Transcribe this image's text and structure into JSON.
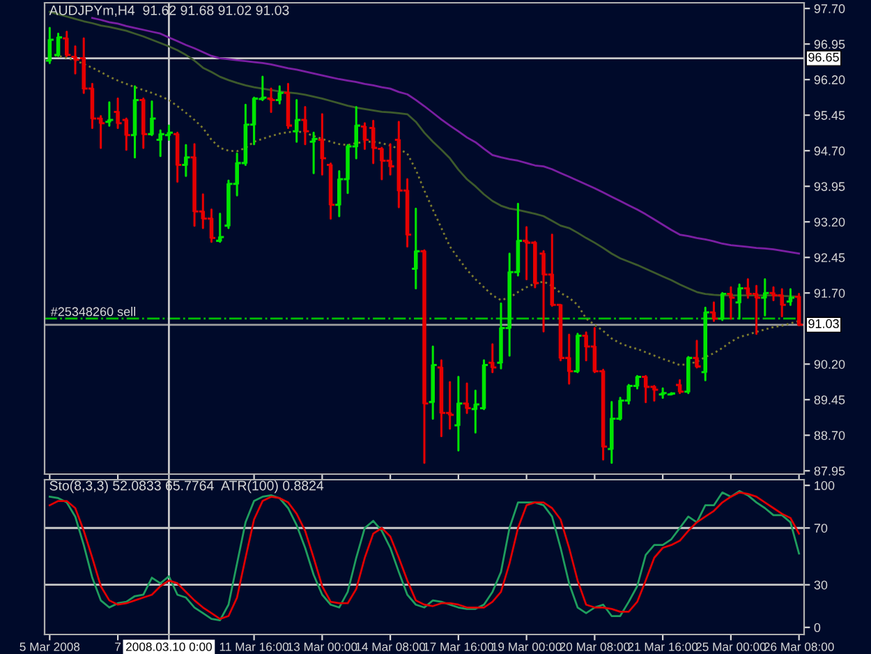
{
  "chart_data": [
    {
      "type": "candlestick",
      "title": "AUDJPYm,H4  91.62 91.68 91.02 91.03",
      "tick_labels": "y",
      "categories": [
        "5 Mar 2008",
        null,
        null,
        null,
        null,
        null,
        null,
        null,
        "7",
        null,
        null,
        null,
        null,
        null,
        "2008.03.10 0:00",
        null,
        null,
        null,
        null,
        null,
        null,
        null,
        null,
        null,
        "11 Mar 16:00",
        null,
        null,
        null,
        null,
        null,
        null,
        null,
        "13 Mar 00:00",
        null,
        null,
        null,
        null,
        null,
        null,
        null,
        "14 Mar 08:00",
        null,
        null,
        null,
        null,
        null,
        null,
        null,
        "17 Mar 16:00",
        null,
        null,
        null,
        null,
        null,
        null,
        null,
        "19 Mar 00:00",
        null,
        null,
        null,
        null,
        null,
        null,
        null,
        "20 Mar 08:00",
        null,
        null,
        null,
        null,
        null,
        null,
        null,
        "21 Mar 16:00",
        null,
        null,
        null,
        null,
        null,
        null,
        null,
        "25 Mar 00:00",
        null,
        null,
        null,
        null,
        null,
        null,
        null,
        "26 Mar 08:00"
      ],
      "ohlc": [
        [
          96.6,
          97.29,
          96.55,
          97.04
        ],
        [
          96.72,
          97.17,
          96.7,
          97.09
        ],
        [
          97.07,
          97.21,
          96.7,
          96.72
        ],
        [
          96.68,
          96.9,
          96.33,
          96.62
        ],
        [
          96.65,
          97.07,
          95.92,
          96.01
        ],
        [
          96.01,
          96.11,
          95.18,
          95.38
        ],
        [
          95.38,
          95.43,
          94.76,
          95.28
        ],
        [
          95.31,
          95.72,
          95.23,
          95.35
        ],
        [
          95.52,
          95.8,
          95.18,
          95.28
        ],
        [
          95.35,
          95.38,
          94.72,
          95.03
        ],
        [
          95.03,
          96.06,
          94.56,
          95.77
        ],
        [
          95.77,
          95.8,
          94.76,
          95.05
        ],
        [
          95.05,
          95.74,
          95.03,
          95.38
        ],
        [
          94.93,
          95.13,
          94.59,
          95.05
        ],
        [
          95.03,
          95.23,
          94.93,
          95.08
        ],
        [
          95.05,
          95.08,
          94.05,
          94.4
        ],
        [
          94.4,
          94.82,
          94.17,
          94.56
        ],
        [
          94.56,
          94.84,
          93.12,
          93.42
        ],
        [
          93.42,
          93.78,
          93.07,
          93.27
        ],
        [
          93.27,
          93.46,
          92.78,
          92.86
        ],
        [
          92.8,
          93.37,
          92.78,
          92.88
        ],
        [
          93.12,
          94.07,
          93.07,
          94.0
        ],
        [
          94.0,
          94.64,
          93.76,
          94.44
        ],
        [
          94.44,
          95.67,
          94.4,
          95.25
        ],
        [
          95.25,
          95.82,
          94.84,
          95.8
        ],
        [
          95.79,
          96.26,
          95.77,
          95.82
        ],
        [
          95.8,
          96.01,
          95.52,
          95.77
        ],
        [
          95.77,
          96.06,
          95.7,
          95.92
        ],
        [
          95.92,
          96.11,
          95.18,
          95.23
        ],
        [
          95.11,
          95.77,
          94.89,
          95.35
        ],
        [
          95.35,
          95.62,
          94.84,
          95.11
        ],
        [
          94.89,
          95.08,
          94.23,
          94.95
        ],
        [
          94.93,
          95.47,
          94.2,
          94.54
        ],
        [
          94.4,
          94.43,
          93.27,
          93.56
        ],
        [
          93.56,
          94.27,
          93.32,
          94.1
        ],
        [
          94.1,
          94.82,
          93.81,
          94.79
        ],
        [
          94.79,
          95.62,
          94.54,
          95.23
        ],
        [
          95.21,
          95.28,
          94.74,
          94.93
        ],
        [
          95.18,
          95.33,
          94.44,
          94.76
        ],
        [
          94.74,
          94.76,
          94.1,
          94.49
        ],
        [
          94.49,
          94.84,
          94.2,
          94.37
        ],
        [
          94.93,
          95.31,
          93.51,
          93.86
        ],
        [
          93.86,
          94.1,
          92.68,
          92.93
        ],
        [
          92.21,
          93.48,
          91.8,
          92.58
        ],
        [
          92.58,
          92.6,
          88.12,
          89.37
        ],
        [
          89.4,
          90.57,
          89.05,
          90.18
        ],
        [
          90.13,
          90.28,
          88.68,
          89.17
        ],
        [
          89.17,
          89.82,
          88.84,
          89.13
        ],
        [
          88.91,
          89.93,
          88.38,
          89.37
        ],
        [
          89.37,
          89.79,
          89.17,
          89.27
        ],
        [
          89.25,
          89.64,
          88.76,
          89.35
        ],
        [
          89.27,
          90.28,
          89.25,
          90.18
        ],
        [
          90.23,
          90.62,
          90.03,
          90.13
        ],
        [
          90.23,
          91.48,
          90.11,
          90.96
        ],
        [
          90.96,
          92.53,
          90.38,
          92.14
        ],
        [
          92.14,
          93.58,
          92.07,
          92.8
        ],
        [
          92.8,
          93.09,
          91.99,
          92.76
        ],
        [
          92.76,
          92.78,
          91.82,
          91.91
        ],
        [
          92.53,
          92.58,
          90.89,
          92.09
        ],
        [
          92.09,
          92.93,
          91.43,
          91.45
        ],
        [
          91.45,
          91.45,
          90.28,
          90.33
        ],
        [
          90.33,
          90.82,
          89.79,
          90.05
        ],
        [
          90.05,
          90.84,
          90.03,
          90.8
        ],
        [
          90.8,
          90.87,
          90.28,
          90.57
        ],
        [
          90.57,
          90.96,
          90.03,
          90.05
        ],
        [
          90.05,
          90.08,
          88.19,
          88.46
        ],
        [
          88.41,
          89.4,
          88.12,
          89.05
        ],
        [
          89.05,
          89.49,
          89.03,
          89.43
        ],
        [
          89.43,
          89.76,
          89.37,
          89.74
        ],
        [
          89.74,
          89.95,
          89.69,
          89.93
        ],
        [
          89.93,
          89.95,
          89.4,
          89.72
        ],
        [
          89.72,
          89.74,
          89.43,
          89.66
        ],
        [
          89.56,
          89.69,
          89.49,
          89.59
        ],
        [
          89.56,
          89.59,
          89.56,
          89.58
        ],
        [
          89.76,
          89.86,
          89.59,
          89.62
        ],
        [
          89.62,
          90.35,
          89.59,
          90.33
        ],
        [
          90.33,
          90.69,
          90.13,
          90.15
        ],
        [
          90.03,
          91.39,
          89.86,
          91.29
        ],
        [
          91.29,
          91.5,
          91.11,
          91.16
        ],
        [
          91.16,
          91.7,
          91.13,
          91.68
        ],
        [
          91.68,
          91.82,
          91.16,
          91.6
        ],
        [
          91.5,
          91.88,
          91.16,
          91.8
        ],
        [
          91.8,
          91.99,
          91.6,
          91.68
        ],
        [
          91.68,
          91.85,
          90.84,
          91.6
        ],
        [
          91.6,
          91.99,
          91.23,
          91.7
        ],
        [
          91.7,
          91.82,
          91.55,
          91.65
        ],
        [
          91.65,
          91.78,
          91.21,
          91.45
        ],
        [
          91.52,
          91.78,
          91.45,
          91.6
        ],
        [
          91.62,
          91.68,
          91.02,
          91.03
        ]
      ],
      "colors": [
        "#00e600",
        "#00e600",
        "#e60000",
        "#e60000",
        "#e60000",
        "#e60000",
        "#e60000",
        "#00e600",
        "#e60000",
        "#e60000",
        "#00e600",
        "#e60000",
        "#00e600",
        "#00e600",
        "#00e600",
        "#e60000",
        "#00e600",
        "#e60000",
        "#e60000",
        "#e60000",
        "#00e600",
        "#00e600",
        "#00e600",
        "#00e600",
        "#00e600",
        "#00e600",
        "#e60000",
        "#00e600",
        "#e60000",
        "#00e600",
        "#e60000",
        "#00e600",
        "#e60000",
        "#e60000",
        "#00e600",
        "#00e600",
        "#00e600",
        "#e60000",
        "#e60000",
        "#e60000",
        "#e60000",
        "#e60000",
        "#e60000",
        "#00e600",
        "#e60000",
        "#00e600",
        "#e60000",
        "#e60000",
        "#00e600",
        "#e60000",
        "#00e600",
        "#00e600",
        "#e60000",
        "#00e600",
        "#00e600",
        "#00e600",
        "#e60000",
        "#e60000",
        "#e60000",
        "#e60000",
        "#e60000",
        "#e60000",
        "#00e600",
        "#e60000",
        "#e60000",
        "#e60000",
        "#00e600",
        "#00e600",
        "#00e600",
        "#00e600",
        "#e60000",
        "#e60000",
        "#00e600",
        "#00e600",
        "#e60000",
        "#00e600",
        "#e60000",
        "#00e600",
        "#e60000",
        "#00e600",
        "#e60000",
        "#00e600",
        "#e60000",
        "#e60000",
        "#00e600",
        "#e60000",
        "#e60000",
        "#00e600",
        "#e60000"
      ],
      "series": [
        {
          "type": "line",
          "color": "#7a1fa2",
          "line_style": "solid",
          "values": [
            null,
            null,
            null,
            null,
            null,
            97.5,
            97.46,
            97.41,
            97.38,
            97.33,
            97.29,
            97.25,
            97.21,
            97.17,
            97.09,
            97.01,
            96.93,
            96.86,
            96.78,
            96.7,
            96.65,
            96.63,
            96.61,
            96.59,
            96.57,
            96.55,
            96.52,
            96.48,
            96.44,
            96.41,
            96.37,
            96.33,
            96.29,
            96.25,
            96.21,
            96.18,
            96.15,
            96.11,
            96.08,
            96.04,
            96.01,
            95.94,
            95.89,
            95.77,
            95.64,
            95.5,
            95.36,
            95.23,
            95.11,
            94.98,
            94.88,
            94.74,
            94.61,
            94.56,
            94.52,
            94.49,
            94.44,
            94.39,
            94.37,
            94.31,
            94.23,
            94.15,
            94.07,
            93.99,
            93.91,
            93.82,
            93.73,
            93.64,
            93.55,
            93.46,
            93.36,
            93.25,
            93.14,
            93.03,
            92.93,
            92.9,
            92.86,
            92.83,
            92.79,
            92.74,
            92.71,
            92.69,
            92.67,
            92.65,
            92.64,
            92.62,
            92.59,
            92.56,
            92.53
          ]
        },
        {
          "type": "line",
          "color": "#3d5a2c",
          "line_style": "solid",
          "values": [
            97.63,
            97.58,
            97.53,
            97.48,
            97.43,
            97.39,
            97.34,
            97.31,
            97.27,
            97.23,
            97.17,
            97.11,
            97.04,
            96.97,
            96.9,
            96.82,
            96.72,
            96.6,
            96.45,
            96.36,
            96.26,
            96.19,
            96.13,
            96.08,
            96.04,
            96.01,
            95.98,
            95.95,
            95.93,
            95.91,
            95.88,
            95.84,
            95.8,
            95.75,
            95.7,
            95.65,
            95.61,
            95.58,
            95.55,
            95.52,
            95.51,
            95.49,
            95.47,
            95.31,
            95.08,
            94.89,
            94.72,
            94.54,
            94.3,
            94.1,
            93.95,
            93.78,
            93.64,
            93.54,
            93.48,
            93.45,
            93.41,
            93.37,
            93.32,
            93.22,
            93.12,
            93.07,
            92.97,
            92.86,
            92.76,
            92.65,
            92.53,
            92.43,
            92.36,
            92.29,
            92.21,
            92.13,
            92.05,
            91.97,
            91.88,
            91.8,
            91.72,
            91.68,
            91.66,
            91.65,
            91.65,
            91.65,
            91.65,
            91.65,
            91.65,
            91.65,
            91.64,
            91.63,
            91.62
          ]
        },
        {
          "type": "line",
          "color": "#7d7d2e",
          "line_style": "dotted",
          "values": [
            96.72,
            96.7,
            96.66,
            96.6,
            96.53,
            96.45,
            96.36,
            96.26,
            96.18,
            96.11,
            96.04,
            95.98,
            95.92,
            95.85,
            95.77,
            95.64,
            95.5,
            95.35,
            95.18,
            94.93,
            94.76,
            94.7,
            94.69,
            94.76,
            94.89,
            94.95,
            95.01,
            95.06,
            95.09,
            95.11,
            95.08,
            95.01,
            94.95,
            94.89,
            94.84,
            94.82,
            94.86,
            94.89,
            94.89,
            94.86,
            94.81,
            94.74,
            94.64,
            94.3,
            93.86,
            93.46,
            93.07,
            92.68,
            92.43,
            92.19,
            91.99,
            91.82,
            91.65,
            91.55,
            91.6,
            91.72,
            91.82,
            91.9,
            91.94,
            91.85,
            91.7,
            91.6,
            91.45,
            91.16,
            91.03,
            90.9,
            90.74,
            90.64,
            90.57,
            90.52,
            90.45,
            90.38,
            90.31,
            90.25,
            90.18,
            90.2,
            90.25,
            90.35,
            90.43,
            90.54,
            90.67,
            90.77,
            90.82,
            90.88,
            90.93,
            90.98,
            91.01,
            91.06,
            91.11
          ]
        }
      ],
      "ylim": [
        87.88,
        97.82
      ],
      "yticks": [
        {
          "value": 97.7,
          "label": "97.70"
        },
        {
          "value": 96.95,
          "label": "96.95"
        },
        {
          "value": 96.2,
          "label": "96.20"
        },
        {
          "value": 95.45,
          "label": "95.45"
        },
        {
          "value": 94.7,
          "label": "94.70"
        },
        {
          "value": 93.95,
          "label": "93.95"
        },
        {
          "value": 93.2,
          "label": "93.20"
        },
        {
          "value": 92.45,
          "label": "92.45"
        },
        {
          "value": 91.7,
          "label": "91.70"
        },
        {
          "value": 90.2,
          "label": "90.20"
        },
        {
          "value": 89.45,
          "label": "89.45"
        },
        {
          "value": 88.7,
          "label": "88.70"
        },
        {
          "value": 87.95,
          "label": "87.95"
        }
      ],
      "ref_lines": [
        {
          "axis": "y",
          "value": 96.65,
          "label": "96.65",
          "color": "#c8c8c8",
          "line_style": "solid"
        },
        {
          "axis": "y",
          "value": 91.03,
          "label": "91.03",
          "color": "#a0a0a0",
          "line_style": "solid"
        },
        {
          "axis": "y",
          "value": 91.16,
          "color": "#00c000",
          "line_style": "dashdot"
        },
        {
          "axis": "x",
          "value": "2008.03.10 0:00",
          "color": "#c8c8c8",
          "line_style": "solid"
        }
      ],
      "annotations": [
        {
          "text": "#25348260 sell",
          "y": 91.16
        }
      ]
    },
    {
      "type": "line",
      "title": "Sto(8,3,3) 52.0833 65.7764  ATR(100) 0.8824",
      "categories": [
        "5 Mar 2008",
        null,
        null,
        null,
        null,
        null,
        null,
        null,
        "7",
        null,
        null,
        null,
        null,
        null,
        "2008.03.10 0:00",
        null,
        null,
        null,
        null,
        null,
        null,
        null,
        null,
        null,
        "11 Mar 16:00",
        null,
        null,
        null,
        null,
        null,
        null,
        null,
        "13 Mar 00:00",
        null,
        null,
        null,
        null,
        null,
        null,
        null,
        "14 Mar 08:00",
        null,
        null,
        null,
        null,
        null,
        null,
        null,
        "17 Mar 16:00",
        null,
        null,
        null,
        null,
        null,
        null,
        null,
        "19 Mar 00:00",
        null,
        null,
        null,
        null,
        null,
        null,
        null,
        "20 Mar 08:00",
        null,
        null,
        null,
        null,
        null,
        null,
        null,
        "21 Mar 16:00",
        null,
        null,
        null,
        null,
        null,
        null,
        null,
        "25 Mar 00:00",
        null,
        null,
        null,
        null,
        null,
        null,
        null,
        "26 Mar 08:00"
      ],
      "series": [
        {
          "color": "#1f9e5e",
          "line_style": "solid",
          "values": [
            92,
            91,
            88,
            78,
            58,
            35,
            19,
            14,
            17,
            18,
            22,
            23,
            35,
            31,
            36,
            23,
            21,
            14,
            10,
            6,
            5,
            16,
            45,
            74,
            89,
            92,
            93,
            91,
            84,
            72,
            56,
            37,
            23,
            16,
            14,
            25,
            49,
            70,
            75,
            68,
            56,
            39,
            23,
            16,
            14,
            19,
            18,
            16,
            14,
            13,
            13,
            16,
            25,
            39,
            70,
            88,
            88,
            88,
            86,
            78,
            56,
            31,
            14,
            10,
            14,
            16,
            8,
            8,
            18,
            29,
            51,
            58,
            58,
            62,
            70,
            78,
            74,
            86,
            86,
            95,
            92,
            96,
            93,
            88,
            84,
            79,
            79,
            74,
            52
          ]
        },
        {
          "color": "#e00000",
          "line_style": "solid",
          "values": [
            86,
            89,
            89,
            84,
            68,
            49,
            29,
            19,
            16,
            17,
            19,
            21,
            23,
            29,
            33,
            31,
            25,
            19,
            14,
            10,
            6,
            8,
            21,
            49,
            76,
            89,
            92,
            91,
            88,
            80,
            68,
            49,
            29,
            18,
            17,
            17,
            27,
            49,
            66,
            70,
            64,
            49,
            33,
            19,
            16,
            15,
            17,
            17,
            16,
            14,
            14,
            14,
            18,
            25,
            45,
            70,
            86,
            88,
            88,
            84,
            76,
            56,
            33,
            16,
            14,
            14,
            13,
            11,
            11,
            18,
            33,
            49,
            56,
            58,
            61,
            68,
            74,
            78,
            82,
            88,
            92,
            95,
            94,
            92,
            88,
            84,
            80,
            77,
            66
          ]
        }
      ],
      "ylim": [
        -5,
        104
      ],
      "yticks": [
        0,
        30,
        70,
        100
      ],
      "ref_lines": [
        {
          "axis": "y",
          "value": 70,
          "color": "#c8c8c8",
          "line_style": "solid"
        },
        {
          "axis": "y",
          "value": 30,
          "color": "#c8c8c8",
          "line_style": "solid"
        },
        {
          "axis": "x",
          "value": "2008.03.10 0:00",
          "color": "#c8c8c8",
          "line_style": "solid"
        }
      ]
    }
  ]
}
